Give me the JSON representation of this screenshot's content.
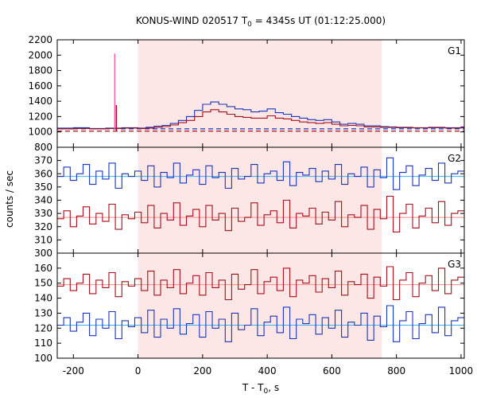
{
  "chart_data": {
    "type": "line",
    "title_main": "KONUS-WIND 020517 T",
    "title_sub": "0",
    "title_rest": " = 4345s UT (01:12:25.000)",
    "xlabel_main": "T - T",
    "xlabel_sub": "0",
    "xlabel_rest": ", s",
    "ylabel": "counts / sec",
    "xlim": [
      -250,
      1010
    ],
    "xticks": [
      -200,
      0,
      200,
      400,
      600,
      800,
      1000
    ],
    "highlight_interval": [
      0,
      755
    ],
    "colors": {
      "blue": "#1a35b8",
      "red": "#a50f1a",
      "pink": "#ff5fae",
      "cyan": "#3bb0f0",
      "salmon": "#f58a8a",
      "band": "#fde6e6"
    },
    "panels": [
      {
        "label": "G1",
        "ylim": [
          800,
          2200
        ],
        "yticks": [
          800,
          1000,
          1200,
          1400,
          1600,
          1800,
          2000,
          2200
        ],
        "background_levels": {
          "blue": 1040,
          "red": 1010
        },
        "spike": {
          "x": -72,
          "pink": 2020,
          "red": 1350
        },
        "series": [
          {
            "color": "blue",
            "x": [
              -250,
              -200,
              -150,
              -100,
              -50,
              0,
              25,
              50,
              75,
              100,
              125,
              150,
              175,
              200,
              225,
              250,
              275,
              300,
              325,
              350,
              375,
              400,
              425,
              450,
              475,
              500,
              525,
              550,
              575,
              600,
              625,
              650,
              675,
              700,
              725,
              750,
              775,
              800,
              850,
              900,
              950,
              1000
            ],
            "y": [
              1050,
              1055,
              1045,
              1050,
              1055,
              1050,
              1060,
              1075,
              1085,
              1110,
              1150,
              1200,
              1280,
              1360,
              1390,
              1360,
              1330,
              1300,
              1290,
              1260,
              1270,
              1300,
              1250,
              1230,
              1200,
              1180,
              1160,
              1150,
              1160,
              1130,
              1100,
              1110,
              1100,
              1080,
              1080,
              1070,
              1065,
              1060,
              1055,
              1060,
              1055,
              1065
            ]
          },
          {
            "color": "red",
            "x": [
              -250,
              -200,
              -150,
              -100,
              -50,
              0,
              25,
              50,
              75,
              100,
              125,
              150,
              175,
              200,
              225,
              250,
              275,
              300,
              325,
              350,
              375,
              400,
              425,
              450,
              475,
              500,
              525,
              550,
              575,
              600,
              625,
              650,
              675,
              700,
              725,
              750,
              775,
              800,
              850,
              900,
              950,
              1000
            ],
            "y": [
              1040,
              1045,
              1040,
              1045,
              1050,
              1045,
              1050,
              1060,
              1070,
              1090,
              1120,
              1150,
              1200,
              1260,
              1290,
              1260,
              1230,
              1200,
              1190,
              1180,
              1180,
              1210,
              1180,
              1170,
              1150,
              1130,
              1120,
              1110,
              1120,
              1100,
              1080,
              1085,
              1080,
              1065,
              1065,
              1060,
              1058,
              1055,
              1052,
              1055,
              1050,
              1055
            ]
          }
        ]
      },
      {
        "label": "G2",
        "ylim": [
          300,
          380
        ],
        "yticks": [
          300,
          310,
          320,
          330,
          340,
          350,
          360,
          370,
          380
        ],
        "background_levels": {
          "blue": 358,
          "red": 327
        },
        "series": [
          {
            "color": "blue",
            "x": [
              -250,
              -230,
              -210,
              -190,
              -170,
              -150,
              -130,
              -110,
              -90,
              -70,
              -50,
              -30,
              -10,
              10,
              30,
              50,
              70,
              90,
              110,
              130,
              150,
              170,
              190,
              210,
              230,
              250,
              270,
              290,
              310,
              330,
              350,
              370,
              390,
              410,
              430,
              450,
              470,
              490,
              510,
              530,
              550,
              570,
              590,
              610,
              630,
              650,
              670,
              690,
              710,
              730,
              750,
              770,
              790,
              810,
              830,
              850,
              870,
              890,
              910,
              930,
              950,
              970,
              990
            ],
            "y": [
              358,
              365,
              355,
              360,
              367,
              352,
              362,
              356,
              368,
              349,
              360,
              358,
              362,
              355,
              366,
              350,
              361,
              357,
              368,
              353,
              359,
              363,
              352,
              366,
              357,
              361,
              349,
              364,
              356,
              358,
              367,
              353,
              360,
              362,
              355,
              369,
              351,
              361,
              359,
              364,
              354,
              362,
              356,
              367,
              352,
              360,
              358,
              365,
              350,
              363,
              357,
              372,
              348,
              361,
              366,
              351,
              359,
              364,
              355,
              368,
              353,
              360,
              362
            ],
            "end": 1010
          },
          {
            "color": "red",
            "x": [
              -250,
              -230,
              -210,
              -190,
              -170,
              -150,
              -130,
              -110,
              -90,
              -70,
              -50,
              -30,
              -10,
              10,
              30,
              50,
              70,
              90,
              110,
              130,
              150,
              170,
              190,
              210,
              230,
              250,
              270,
              290,
              310,
              330,
              350,
              370,
              390,
              410,
              430,
              450,
              470,
              490,
              510,
              530,
              550,
              570,
              590,
              610,
              630,
              650,
              670,
              690,
              710,
              730,
              750,
              770,
              790,
              810,
              830,
              850,
              870,
              890,
              910,
              930,
              950,
              970,
              990
            ],
            "y": [
              326,
              332,
              320,
              328,
              335,
              322,
              330,
              324,
              337,
              318,
              329,
              326,
              331,
              323,
              336,
              319,
              330,
              325,
              338,
              321,
              328,
              333,
              320,
              336,
              325,
              330,
              317,
              334,
              324,
              327,
              338,
              321,
              329,
              332,
              323,
              340,
              319,
              330,
              328,
              334,
              322,
              331,
              325,
              339,
              320,
              329,
              327,
              336,
              318,
              333,
              326,
              343,
              316,
              330,
              337,
              319,
              328,
              334,
              323,
              339,
              321,
              330,
              332
            ],
            "end": 1010
          }
        ]
      },
      {
        "label": "G3",
        "ylim": [
          100,
          170
        ],
        "yticks": [
          100,
          110,
          120,
          130,
          140,
          150,
          160
        ],
        "background_levels": {
          "blue": 122,
          "red": 149
        },
        "series": [
          {
            "color": "red",
            "x": [
              -250,
              -230,
              -210,
              -190,
              -170,
              -150,
              -130,
              -110,
              -90,
              -70,
              -50,
              -30,
              -10,
              10,
              30,
              50,
              70,
              90,
              110,
              130,
              150,
              170,
              190,
              210,
              230,
              250,
              270,
              290,
              310,
              330,
              350,
              370,
              390,
              410,
              430,
              450,
              470,
              490,
              510,
              530,
              550,
              570,
              590,
              610,
              630,
              650,
              670,
              690,
              710,
              730,
              750,
              770,
              790,
              810,
              830,
              850,
              870,
              890,
              910,
              930,
              950,
              970,
              990
            ],
            "y": [
              148,
              153,
              145,
              150,
              156,
              143,
              152,
              147,
              157,
              141,
              151,
              148,
              153,
              145,
              158,
              142,
              152,
              147,
              159,
              143,
              150,
              155,
              142,
              157,
              147,
              152,
              139,
              156,
              146,
              149,
              159,
              143,
              151,
              154,
              145,
              160,
              141,
              152,
              150,
              155,
              144,
              153,
              147,
              158,
              142,
              151,
              149,
              156,
              140,
              154,
              148,
              161,
              139,
              152,
              157,
              141,
              150,
              155,
              145,
              160,
              143,
              152,
              154
            ],
            "end": 1010
          },
          {
            "color": "blue",
            "x": [
              -250,
              -230,
              -210,
              -190,
              -170,
              -150,
              -130,
              -110,
              -90,
              -70,
              -50,
              -30,
              -10,
              10,
              30,
              50,
              70,
              90,
              110,
              130,
              150,
              170,
              190,
              210,
              230,
              250,
              270,
              290,
              310,
              330,
              350,
              370,
              390,
              410,
              430,
              450,
              470,
              490,
              510,
              530,
              550,
              570,
              590,
              610,
              630,
              650,
              670,
              690,
              710,
              730,
              750,
              770,
              790,
              810,
              830,
              850,
              870,
              890,
              910,
              930,
              950,
              970,
              990
            ],
            "y": [
              122,
              127,
              118,
              124,
              130,
              115,
              126,
              120,
              131,
              113,
              125,
              121,
              127,
              117,
              132,
              114,
              126,
              120,
              133,
              116,
              123,
              129,
              114,
              131,
              120,
              126,
              111,
              130,
              119,
              122,
              133,
              115,
              124,
              128,
              117,
              134,
              113,
              126,
              123,
              129,
              116,
              127,
              120,
              132,
              114,
              124,
              122,
              130,
              112,
              128,
              121,
              135,
              111,
              125,
              131,
              113,
              123,
              129,
              117,
              134,
              115,
              125,
              127
            ],
            "end": 1010
          }
        ]
      }
    ]
  }
}
